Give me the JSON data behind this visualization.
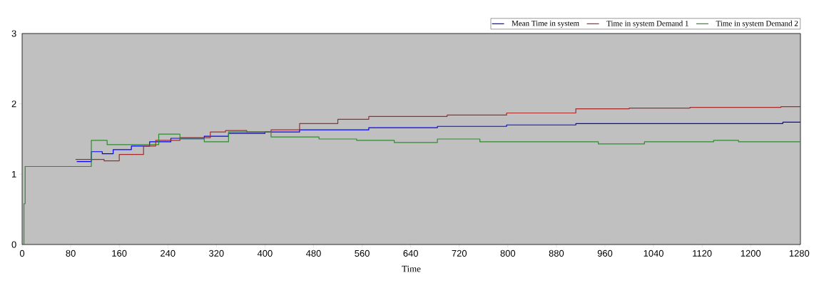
{
  "chart_data": {
    "type": "step",
    "xlabel": "Time",
    "xlim": [
      0,
      1282
    ],
    "ylim": [
      0,
      3
    ],
    "xticks": [
      0,
      80,
      160,
      240,
      320,
      400,
      480,
      560,
      640,
      720,
      800,
      880,
      960,
      1040,
      1120,
      1200,
      1280
    ],
    "yticks": [
      0,
      1,
      2,
      3
    ],
    "legend": "top right",
    "series": [
      {
        "name": "Mean Time in system",
        "color": "#0000ff",
        "x": [
          90,
          114,
          132,
          150,
          180,
          210,
          245,
          300,
          340,
          400,
          457,
          571,
          684,
          798,
          912,
          1253,
          1282
        ],
        "values": [
          1.18,
          1.32,
          1.29,
          1.35,
          1.4,
          1.46,
          1.51,
          1.54,
          1.58,
          1.6,
          1.63,
          1.66,
          1.68,
          1.7,
          1.72,
          1.74,
          1.74
        ]
      },
      {
        "name": "Time in system Demand 1",
        "color": "#a52a2a",
        "x": [
          88,
          120,
          135,
          160,
          200,
          220,
          260,
          310,
          335,
          370,
          410,
          457,
          520,
          571,
          700,
          798,
          912,
          1000,
          1100,
          1250,
          1282
        ],
        "values": [
          1.21,
          1.21,
          1.19,
          1.28,
          1.4,
          1.48,
          1.52,
          1.6,
          1.62,
          1.6,
          1.63,
          1.72,
          1.78,
          1.82,
          1.84,
          1.87,
          1.93,
          1.94,
          1.95,
          1.96,
          1.96
        ]
      },
      {
        "name": "Time in system Demand 2",
        "color": "#2e8b2e",
        "x": [
          0,
          3,
          5,
          114,
          140,
          225,
          260,
          300,
          340,
          410,
          489,
          551,
          613,
          684,
          754,
          949,
          1025,
          1139,
          1180,
          1282
        ],
        "values": [
          0,
          0.58,
          1.11,
          1.48,
          1.42,
          1.57,
          1.5,
          1.46,
          1.6,
          1.53,
          1.5,
          1.48,
          1.45,
          1.5,
          1.46,
          1.43,
          1.46,
          1.48,
          1.46,
          1.46
        ]
      }
    ]
  }
}
